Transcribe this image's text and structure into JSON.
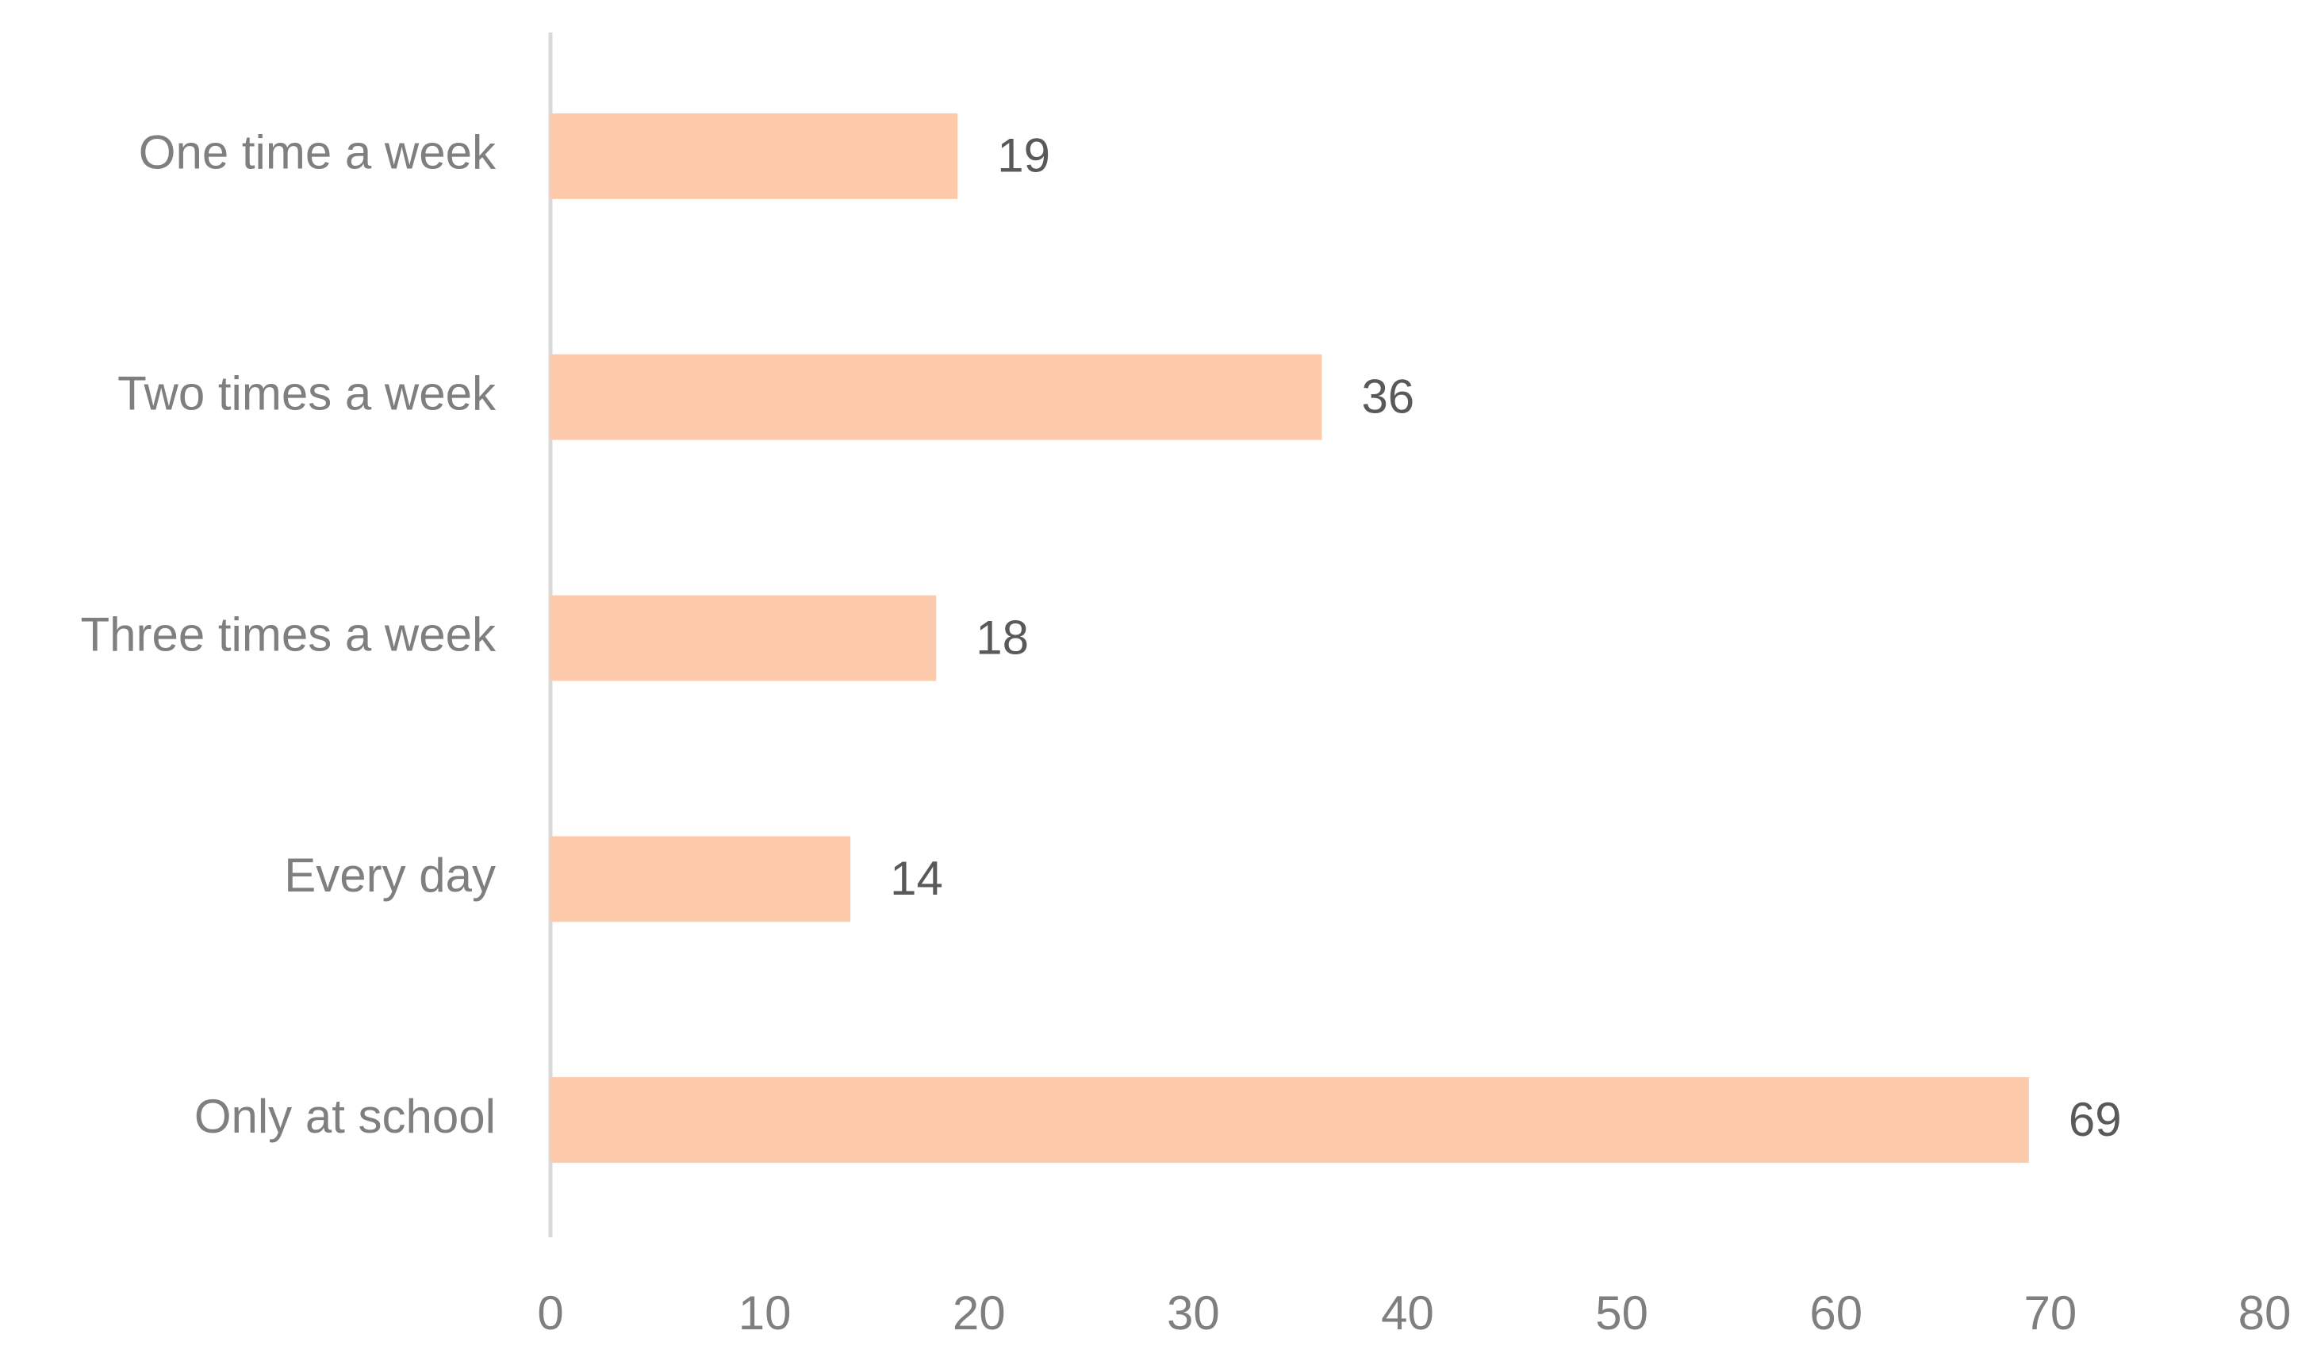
{
  "chart_data": {
    "type": "barh",
    "categories": [
      "One time a week",
      "Two times a week",
      "Three times a week",
      "Every day",
      "Only at school"
    ],
    "values": [
      19,
      36,
      18,
      14,
      69
    ],
    "color": "#fdcbab",
    "xlim": [
      0,
      80
    ],
    "xticks": [
      0,
      10,
      20,
      30,
      40,
      50,
      60,
      70,
      80
    ],
    "grid": false
  }
}
